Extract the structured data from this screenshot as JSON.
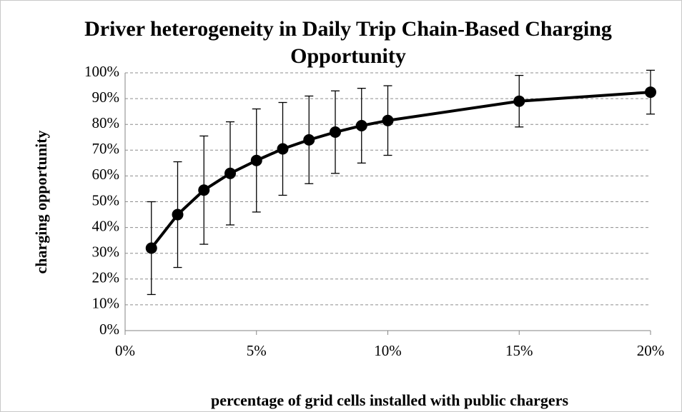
{
  "chart_data": {
    "type": "line",
    "title": "Driver heterogeneity in Daily Trip Chain-Based Charging Opportunity",
    "xlabel": "percentage of grid cells installed with public chargers",
    "ylabel": "charging opportunity",
    "x": [
      1,
      2,
      3,
      4,
      5,
      6,
      7,
      8,
      9,
      10,
      15,
      20
    ],
    "series": [
      {
        "name": "charging opportunity",
        "color": "#000000",
        "values": [
          32,
          45,
          54.5,
          61,
          66,
          70.5,
          74,
          77,
          79.5,
          81.5,
          89,
          92.5
        ],
        "errors": [
          18,
          20.5,
          21,
          20,
          20,
          18,
          17,
          16,
          14.5,
          13.5,
          10,
          8.5
        ]
      }
    ],
    "xlim": [
      0,
      20
    ],
    "xticks": [
      {
        "value": 0,
        "label": "0%"
      },
      {
        "value": 5,
        "label": "5%"
      },
      {
        "value": 10,
        "label": "10%"
      },
      {
        "value": 15,
        "label": "15%"
      },
      {
        "value": 20,
        "label": "20%"
      }
    ],
    "ylim": [
      0,
      100
    ],
    "yticks": [
      {
        "value": 0,
        "label": "0%"
      },
      {
        "value": 10,
        "label": "10%"
      },
      {
        "value": 20,
        "label": "20%"
      },
      {
        "value": 30,
        "label": "30%"
      },
      {
        "value": 40,
        "label": "40%"
      },
      {
        "value": 50,
        "label": "50%"
      },
      {
        "value": 60,
        "label": "60%"
      },
      {
        "value": 70,
        "label": "70%"
      },
      {
        "value": 80,
        "label": "80%"
      },
      {
        "value": 90,
        "label": "90%"
      },
      {
        "value": 100,
        "label": "100%"
      }
    ],
    "grid": true
  }
}
